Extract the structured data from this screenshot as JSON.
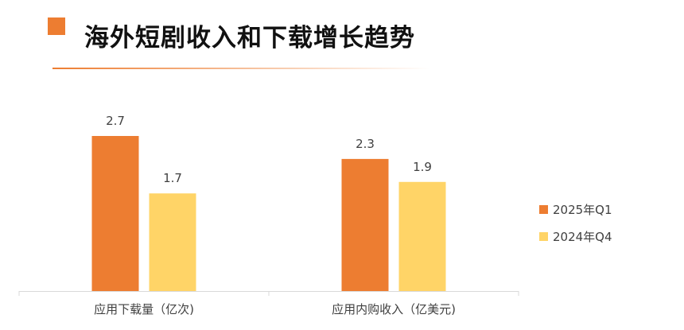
{
  "header": {
    "title": "海外短剧收入和下载增长趋势",
    "accent_color": "#ED7D31"
  },
  "chart_data": {
    "type": "bar",
    "title": "",
    "categories": [
      "应用下载量（亿次)",
      "应用内购收入（亿美元)"
    ],
    "series": [
      {
        "name": "2025年Q1",
        "values": [
          2.7,
          2.3
        ],
        "color": "#ED7D31"
      },
      {
        "name": "2024年Q4",
        "values": [
          1.7,
          1.9
        ],
        "color": "#FFD467"
      }
    ],
    "data_labels": true,
    "legend_position": "right",
    "grid": false,
    "ylim": [
      0,
      2.7
    ]
  }
}
